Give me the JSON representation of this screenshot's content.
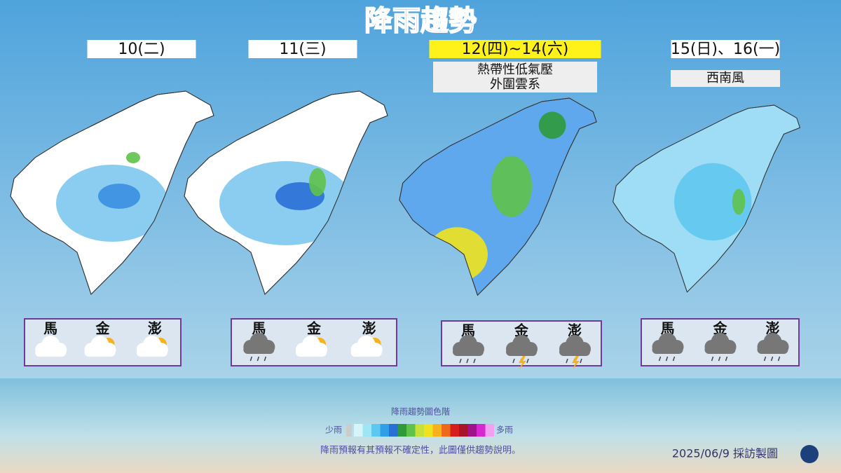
{
  "title": "降雨趨勢",
  "panels": [
    {
      "date": "10(二)",
      "islands": [
        "馬",
        "金",
        "澎"
      ]
    },
    {
      "date": "11(三)",
      "islands": [
        "馬",
        "金",
        "澎"
      ]
    },
    {
      "date": "12(四)~14(六)",
      "note": [
        "熱帶性低氣壓",
        "外圍雲系"
      ],
      "islands": [
        "馬",
        "金",
        "澎"
      ]
    },
    {
      "date": "15(日)、16(一)",
      "note": [
        "西南風"
      ],
      "islands": [
        "馬",
        "金",
        "澎"
      ]
    }
  ],
  "legend": {
    "title": "降雨趨勢圖色階",
    "low": "少雨",
    "high": "多雨"
  },
  "disclaimer": "降雨預報有其預報不確定性，此圖僅供趨勢說明。",
  "credit": "2025/06/9 採訪製圖"
}
